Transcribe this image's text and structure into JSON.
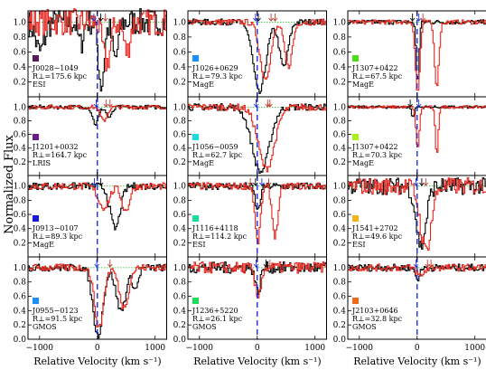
{
  "chart_data": {
    "type": "line",
    "ylabel": "Normalized Flux",
    "xlabel": "Relative Velocity (km s⁻¹)",
    "xlim": [
      -1200,
      1200
    ],
    "ylim": [
      0.0,
      1.15
    ],
    "xticks": [
      -1000,
      0,
      1000
    ],
    "yticks": [
      0.0,
      0.2,
      0.4,
      0.6,
      0.8,
      1.0
    ],
    "continuum": 1.0,
    "grid": false,
    "panels": [
      {
        "name": "J0028−1049",
        "rho": "R⊥=175.6 kpc",
        "instrument": "ESI",
        "color": "#5a1a5a",
        "black": [
          {
            "v": -1000,
            "depth": 0.4,
            "w": 180
          },
          {
            "v": -300,
            "depth": 0.3,
            "w": 100
          },
          {
            "v": 60,
            "depth": 0.85,
            "w": 120
          },
          {
            "v": 300,
            "depth": 0.5,
            "w": 120
          }
        ],
        "red": [
          {
            "v": 150,
            "depth": 0.55,
            "w": 160
          },
          {
            "v": 500,
            "depth": 0.4,
            "w": 120
          }
        ],
        "noise": 0.18,
        "arrows": [
          {
            "v": -60,
            "c": "blue"
          },
          {
            "v": 60,
            "c": "black"
          },
          {
            "v": 140,
            "c": "red"
          }
        ]
      },
      {
        "name": "J1026+0629",
        "rho": "R⊥=79.3 kpc",
        "instrument": "MagE",
        "color": "#1a8fff",
        "black": [
          {
            "v": 30,
            "depth": 0.95,
            "w": 250
          },
          {
            "v": 450,
            "depth": 0.6,
            "w": 180
          }
        ],
        "red": [
          {
            "v": 130,
            "depth": 0.75,
            "w": 220
          },
          {
            "v": 530,
            "depth": 0.6,
            "w": 160
          }
        ],
        "noise": 0.04,
        "arrows": [
          {
            "v": -30,
            "c": "blue"
          },
          {
            "v": 20,
            "c": "black"
          },
          {
            "v": 240,
            "c": "red"
          },
          {
            "v": 310,
            "c": "red"
          }
        ]
      },
      {
        "name": "J1307+0422",
        "rho": "R⊥=67.5 kpc",
        "instrument": "MagE",
        "color": "#4ddc1a",
        "black": [
          {
            "v": 0,
            "depth": 0.8,
            "w": 60
          }
        ],
        "red": [
          {
            "v": 0,
            "depth": 0.95,
            "w": 90
          },
          {
            "v": 330,
            "depth": 0.85,
            "w": 90
          }
        ],
        "noise": 0.03,
        "arrows": [
          {
            "v": -80,
            "c": "black"
          },
          {
            "v": 30,
            "c": "blue"
          },
          {
            "v": 100,
            "c": "red"
          }
        ]
      },
      {
        "name": "J1201+0032",
        "rho": "R⊥=164.7 kpc",
        "instrument": "LRIS",
        "color": "#6a1a8a",
        "black": [
          {
            "v": -40,
            "depth": 0.25,
            "w": 120
          },
          {
            "v": 200,
            "depth": 0.15,
            "w": 120
          }
        ],
        "red": [
          {
            "v": 100,
            "depth": 0.2,
            "w": 140
          }
        ],
        "noise": 0.03,
        "arrows": [
          {
            "v": -20,
            "c": "blue"
          },
          {
            "v": 150,
            "c": "red"
          },
          {
            "v": 220,
            "c": "red"
          }
        ]
      },
      {
        "name": "J1056−0059",
        "rho": "R⊥=62.7 kpc",
        "instrument": "MagE",
        "color": "#1adcdc",
        "black": [
          {
            "v": 50,
            "depth": 0.95,
            "w": 350
          }
        ],
        "red": [
          {
            "v": 150,
            "depth": 0.9,
            "w": 330
          }
        ],
        "noise": 0.05,
        "arrows": [
          {
            "v": -20,
            "c": "blue"
          },
          {
            "v": 180,
            "c": "red"
          },
          {
            "v": 220,
            "c": "red"
          }
        ]
      },
      {
        "name": "J1307+0422",
        "rho": "R⊥=70.3 kpc",
        "instrument": "MagE",
        "color": "#a8f01a",
        "black": [
          {
            "v": -80,
            "depth": 0.15,
            "w": 60
          }
        ],
        "red": [
          {
            "v": 0,
            "depth": 0.6,
            "w": 70
          },
          {
            "v": 330,
            "depth": 0.7,
            "w": 60
          }
        ],
        "noise": 0.02,
        "arrows": [
          {
            "v": -120,
            "c": "black"
          },
          {
            "v": 30,
            "c": "blue"
          }
        ]
      },
      {
        "name": "J0913−0107",
        "rho": "R⊥=89.3 kpc",
        "instrument": "MagE",
        "color": "#1a1adc",
        "black": [
          {
            "v": 300,
            "depth": 0.6,
            "w": 200
          }
        ],
        "red": [
          {
            "v": 100,
            "depth": 0.3,
            "w": 220
          },
          {
            "v": 480,
            "depth": 0.35,
            "w": 160
          }
        ],
        "noise": 0.05,
        "arrows": [
          {
            "v": -50,
            "c": "blue"
          },
          {
            "v": 60,
            "c": "black"
          }
        ]
      },
      {
        "name": "J1116+4118",
        "rho": "R⊥=114.2 kpc",
        "instrument": "ESI",
        "color": "#1adc9a",
        "black": [
          {
            "v": 0,
            "depth": 0.35,
            "w": 100
          }
        ],
        "red": [
          {
            "v": 0,
            "depth": 0.8,
            "w": 110
          },
          {
            "v": 300,
            "depth": 0.7,
            "w": 120
          }
        ],
        "noise": 0.05,
        "arrows": [
          {
            "v": -120,
            "c": "red"
          },
          {
            "v": -30,
            "c": "black"
          },
          {
            "v": 80,
            "c": "blue"
          },
          {
            "v": 200,
            "c": "red"
          }
        ]
      },
      {
        "name": "J1541+2702",
        "rho": "R⊥=49.6 kpc",
        "instrument": "ESI",
        "color": "#f0b41a",
        "black": [
          {
            "v": 60,
            "depth": 0.85,
            "w": 200
          }
        ],
        "red": [
          {
            "v": 140,
            "depth": 0.9,
            "w": 220
          }
        ],
        "noise": 0.12,
        "arrows": [
          {
            "v": -20,
            "c": "blue"
          },
          {
            "v": 80,
            "c": "black"
          },
          {
            "v": 150,
            "c": "red"
          }
        ]
      },
      {
        "name": "J0955−0123",
        "rho": "R⊥=91.5 kpc",
        "instrument": "GMOS",
        "color": "#1a8fff",
        "black": [
          {
            "v": 0,
            "depth": 0.95,
            "w": 200
          },
          {
            "v": 400,
            "depth": 0.6,
            "w": 200
          },
          {
            "v": 650,
            "depth": 0.3,
            "w": 120
          }
        ],
        "red": [
          {
            "v": 20,
            "depth": 0.85,
            "w": 180
          },
          {
            "v": 450,
            "depth": 0.55,
            "w": 190
          }
        ],
        "noise": 0.05,
        "arrows": [
          {
            "v": -10,
            "c": "blue"
          },
          {
            "v": 220,
            "c": "red"
          }
        ]
      },
      {
        "name": "J1236+5220",
        "rho": "R⊥=26.1 kpc",
        "instrument": "GMOS",
        "color": "#1adc5a",
        "black": [
          {
            "v": 0,
            "depth": 0.35,
            "w": 100
          }
        ],
        "red": [
          {
            "v": 0,
            "depth": 0.4,
            "w": 120
          }
        ],
        "noise": 0.08,
        "arrows": [
          {
            "v": -20,
            "c": "blue"
          },
          {
            "v": 150,
            "c": "black"
          },
          {
            "v": 220,
            "c": "red"
          }
        ]
      },
      {
        "name": "J2103+0646",
        "rho": "R⊥=32.8 kpc",
        "instrument": "GMOS",
        "color": "#f06a1a",
        "black": [
          {
            "v": 0,
            "depth": 0.15,
            "w": 100
          }
        ],
        "red": [
          {
            "v": 50,
            "depth": 0.12,
            "w": 140
          }
        ],
        "noise": 0.05,
        "arrows": [
          {
            "v": -20,
            "c": "blue"
          },
          {
            "v": 180,
            "c": "red"
          },
          {
            "v": 240,
            "c": "red"
          }
        ]
      }
    ]
  }
}
